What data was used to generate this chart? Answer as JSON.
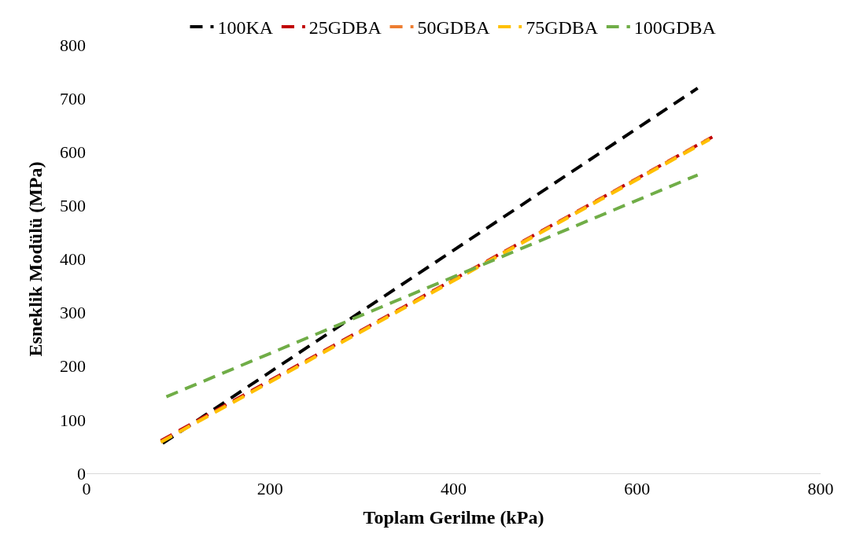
{
  "chart_data": {
    "type": "line",
    "xlabel": "Toplam Gerilme (kPa)",
    "ylabel": "Esneklik Modülü (MPa)",
    "xlim": [
      0,
      800
    ],
    "xticks": [
      0,
      200,
      400,
      600,
      800
    ],
    "ylim": [
      0,
      800
    ],
    "yticks": [
      0,
      100,
      200,
      300,
      400,
      500,
      600,
      700,
      800
    ],
    "grid": false,
    "legend": "top",
    "line_style": "dashed",
    "series": [
      {
        "name": "100KA",
        "color": "#000000",
        "x": [
          83,
          666
        ],
        "values": [
          56,
          719
        ]
      },
      {
        "name": "25GDBA",
        "color": "#c00000",
        "x": [
          81,
          682
        ],
        "values": [
          61,
          628
        ]
      },
      {
        "name": "50GDBA",
        "color": "#ed7d31",
        "x": [
          81,
          679
        ],
        "values": [
          59,
          625
        ]
      },
      {
        "name": "75GDBA",
        "color": "#ffc000",
        "x": [
          81,
          679
        ],
        "values": [
          58,
          623
        ]
      },
      {
        "name": "100GDBA",
        "color": "#70ad47",
        "x": [
          87,
          666
        ],
        "values": [
          143,
          557
        ]
      }
    ]
  }
}
